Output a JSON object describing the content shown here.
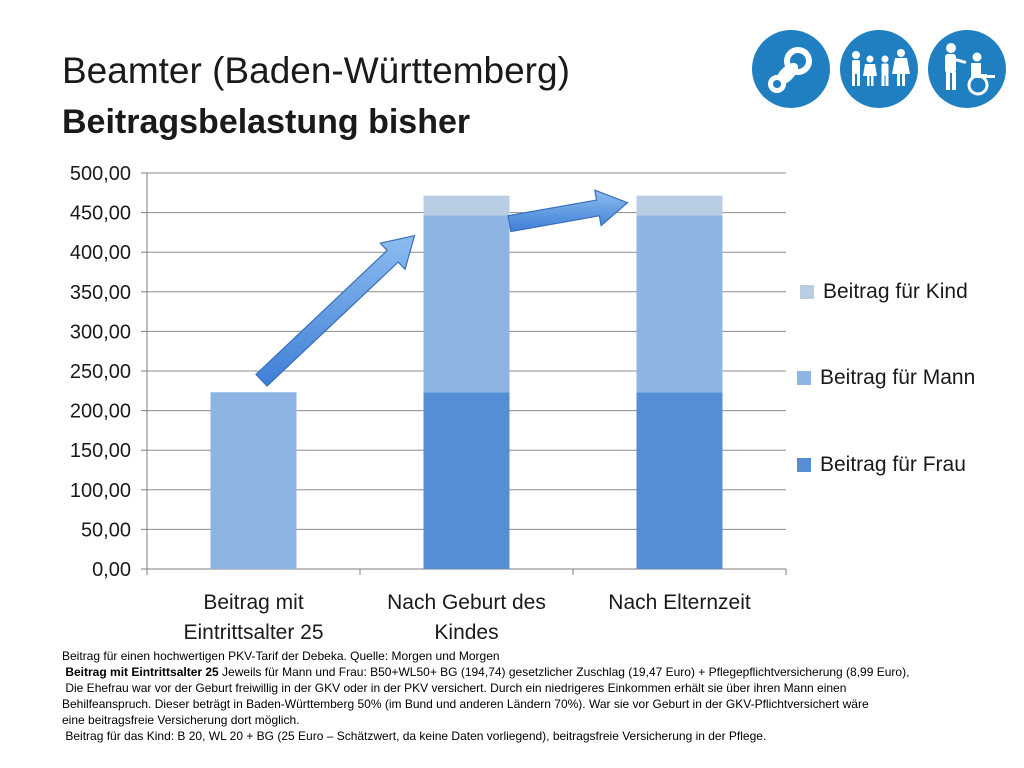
{
  "header": {
    "title": "Beamter (Baden-Württemberg)",
    "subtitle": "Beitragsbelastung bisher"
  },
  "icons": [
    {
      "name": "pacifier-icon",
      "color": "#1f7fc1"
    },
    {
      "name": "family-icon",
      "color": "#1f7fc1"
    },
    {
      "name": "care-wheelchair-icon",
      "color": "#1f7fc1"
    }
  ],
  "chart_data": {
    "type": "bar",
    "stacked": true,
    "categories": [
      "Beitrag mit Eintrittsalter 25",
      "Nach Geburt des Kindes",
      "Nach Elternzeit"
    ],
    "category_lines": [
      [
        "Beitrag mit",
        "Eintrittsalter 25"
      ],
      [
        "Nach Geburt des",
        "Kindes"
      ],
      [
        "Nach Elternzeit"
      ]
    ],
    "series": [
      {
        "name": "Beitrag für Frau",
        "color": "#558ed5",
        "values": [
          0,
          223.2,
          223.2
        ]
      },
      {
        "name": "Beitrag für Mann",
        "color": "#8eb4e3",
        "values": [
          223.2,
          223.2,
          223.2
        ]
      },
      {
        "name": "Beitrag für Kind",
        "color": "#b9cde5",
        "values": [
          0,
          25,
          25
        ]
      }
    ],
    "ylim": [
      0,
      500
    ],
    "yticks": [
      "0,00",
      "50,00",
      "100,00",
      "150,00",
      "200,00",
      "250,00",
      "300,00",
      "350,00",
      "400,00",
      "450,00",
      "500,00"
    ],
    "grid": true,
    "legend_position": "right",
    "annotations": [
      "arrow from bar 1 to bar 2",
      "arrow from bar 2 to bar 3"
    ]
  },
  "legend": {
    "items": [
      {
        "label": "Beitrag für Kind",
        "color": "#b9cde5"
      },
      {
        "label": "Beitrag für Mann",
        "color": "#8eb4e3"
      },
      {
        "label": "Beitrag für Frau",
        "color": "#558ed5"
      }
    ]
  },
  "footnotes": {
    "line1": "Beitrag für einen hochwertigen PKV-Tarif der Debeka. Quelle: Morgen und Morgen",
    "line2_bold": "Beitrag mit Eintrittsalter 25",
    "line2_rest": " Jeweils für Mann und Frau: B50+WL50+ BG (194,74) gesetzlicher Zuschlag (19,47 Euro) + Pflegepflichtversicherung (8,99 Euro),",
    "line3": "Die Ehefrau war vor der Geburt freiwillig in der GKV oder in der PKV versichert. Durch ein niedrigeres Einkommen erhält sie über ihren Mann einen",
    "line4": "Behilfeanspruch. Dieser beträgt in Baden-Württemberg 50% (im Bund und anderen Ländern 70%). War sie vor Geburt in der GKV-Pflichtversichert wäre",
    "line5": "eine beitragsfreie Versicherung dort möglich.",
    "line6": "Beitrag für das Kind: B 20, WL 20 + BG (25 Euro – Schätzwert, da keine Daten vorliegend), beitragsfreie Versicherung in der Pflege."
  }
}
